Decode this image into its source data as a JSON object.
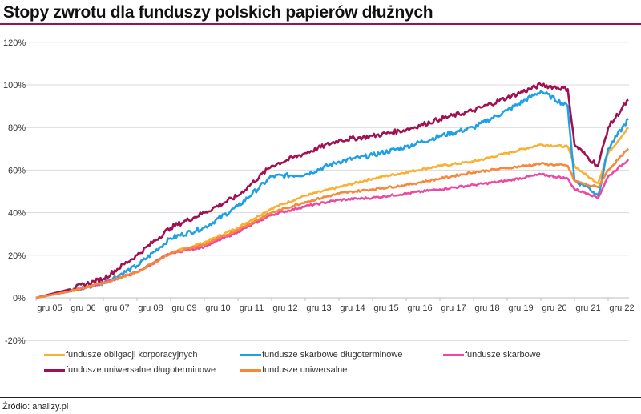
{
  "chart_data": {
    "type": "line",
    "title": "Stopy zwrotu dla funduszy polskich papierów dłużnych",
    "xlabel": "",
    "ylabel": "",
    "ylim": [
      -20,
      120
    ],
    "yticks": [
      "-20%",
      "0%",
      "20%",
      "40%",
      "60%",
      "80%",
      "100%",
      "120%"
    ],
    "ytick_values": [
      -20,
      0,
      20,
      40,
      60,
      80,
      100,
      120
    ],
    "xticks": [
      "gru 05",
      "gru 06",
      "gru 07",
      "gru 08",
      "gru 09",
      "gru 10",
      "gru 11",
      "gru 12",
      "gru 13",
      "gru 14",
      "gru 15",
      "gru 16",
      "gru 17",
      "gru 18",
      "gru 19",
      "gru 20",
      "gru 21",
      "gru 22"
    ],
    "grid": true,
    "legend_position": "bottom",
    "x": [
      0,
      1,
      2,
      3,
      4,
      5,
      6,
      7,
      8,
      9,
      10,
      11,
      12,
      13,
      14,
      15,
      15.8,
      16,
      16.4,
      16.7,
      17,
      17.6
    ],
    "series": [
      {
        "name": "fundusze obligacji korporacyjnych",
        "color": "#fbb034",
        "values": [
          0,
          3,
          7,
          12,
          21,
          26,
          33,
          42,
          48,
          52,
          56,
          59,
          62,
          64,
          68,
          72,
          71,
          62,
          57,
          54,
          68,
          80
        ]
      },
      {
        "name": "fundusze skarbowe długoterminowe",
        "color": "#1ea0e6",
        "values": [
          0,
          3,
          7,
          15,
          28,
          33,
          43,
          57,
          58,
          64,
          67,
          71,
          76,
          80,
          88,
          97,
          90,
          55,
          52,
          48,
          70,
          84
        ]
      },
      {
        "name": "fundusze skarbowe",
        "color": "#ec4aa2",
        "values": [
          0,
          3,
          7,
          12,
          21,
          24,
          31,
          39,
          43,
          46,
          47,
          49,
          51,
          53,
          55,
          58,
          56,
          51,
          49,
          47,
          57,
          65
        ]
      },
      {
        "name": "fundusze uniwersalne długoterminowe",
        "color": "#a2104f",
        "values": [
          0,
          4,
          9,
          20,
          33,
          40,
          48,
          62,
          68,
          74,
          76,
          79,
          84,
          88,
          94,
          100,
          98,
          72,
          66,
          62,
          80,
          93
        ]
      },
      {
        "name": "fundusze uniwersalne",
        "color": "#f7873a",
        "values": [
          0,
          3,
          7,
          12,
          21,
          25,
          32,
          40,
          45,
          49,
          51,
          53,
          56,
          59,
          61,
          63,
          62,
          55,
          53,
          52,
          60,
          70
        ]
      }
    ]
  },
  "source": "Źródło: analizy.pl"
}
